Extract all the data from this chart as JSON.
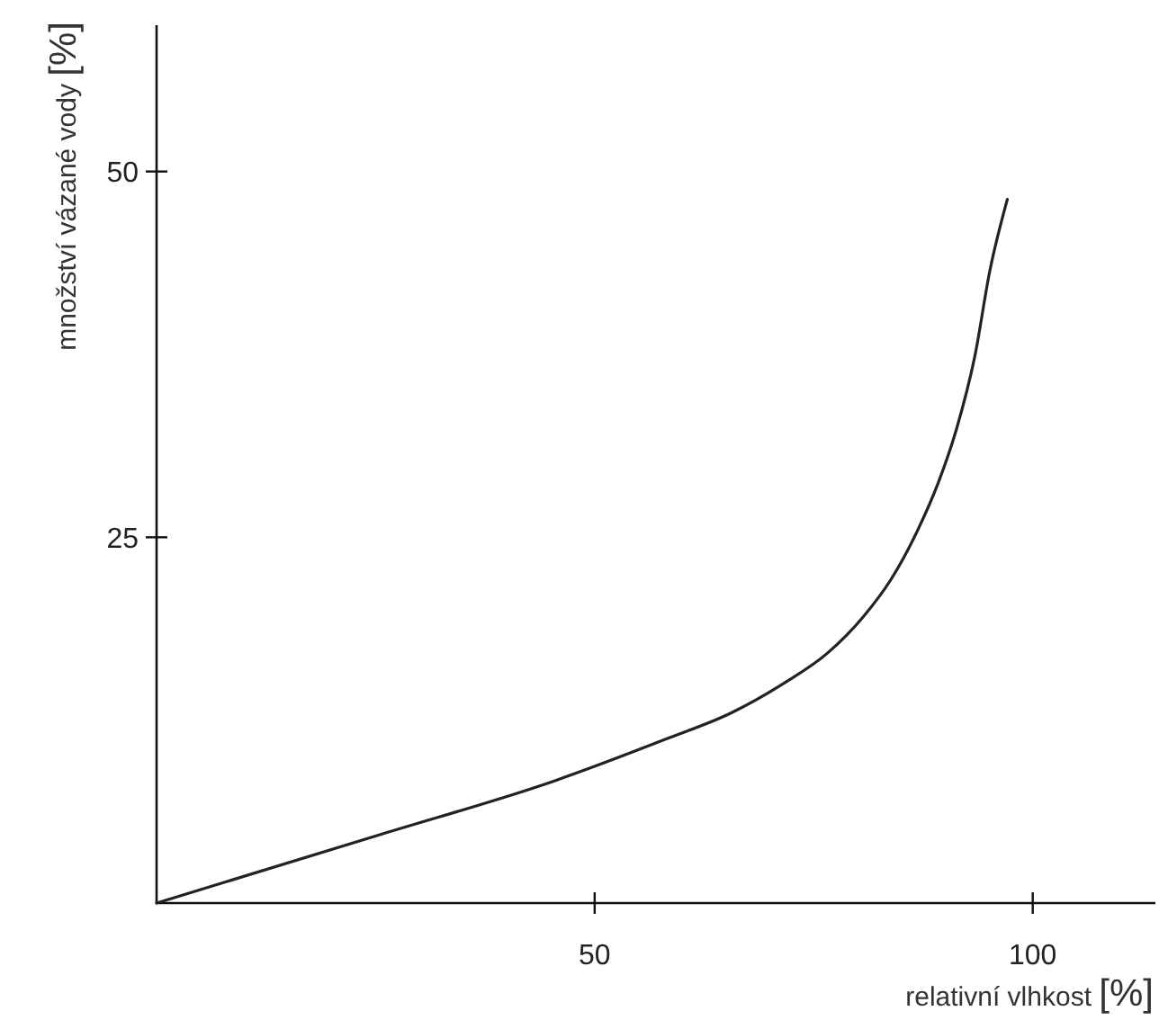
{
  "chart_data": {
    "type": "line",
    "xlabel": "relativní vlhkost [%]",
    "ylabel": "množství vázané vody [%]",
    "xlim": [
      0,
      114
    ],
    "xticks": [
      50,
      100
    ],
    "ylim": [
      0,
      60
    ],
    "yticks": [
      25,
      50
    ],
    "grid": false,
    "marker": "none",
    "line_style": "solid",
    "series": [
      {
        "color": "#222222",
        "x": [
          0,
          25.9,
          45.4,
          58.1,
          65.6,
          71.8,
          76.6,
          80.7,
          83.8,
          86.8,
          89.2,
          91.3,
          93.4,
          95.1,
          97.1
        ],
        "values": [
          0,
          4.75,
          8.35,
          11.2,
          13.0,
          15.1,
          17.1,
          19.6,
          22.1,
          25.4,
          28.7,
          32.4,
          37.4,
          43.2,
          48.1
        ]
      }
    ]
  }
}
